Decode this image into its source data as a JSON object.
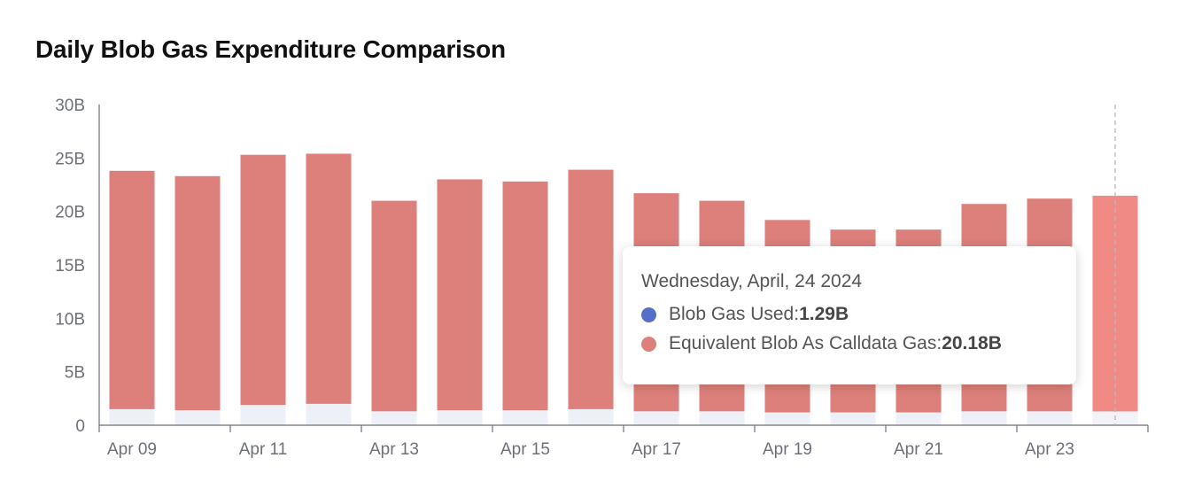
{
  "chart_data": {
    "type": "bar",
    "stacked": true,
    "title": "Daily Blob Gas Expenditure Comparison",
    "categories": [
      "Apr 09",
      "Apr 10",
      "Apr 11",
      "Apr 12",
      "Apr 13",
      "Apr 14",
      "Apr 15",
      "Apr 16",
      "Apr 17",
      "Apr 18",
      "Apr 19",
      "Apr 20",
      "Apr 21",
      "Apr 22",
      "Apr 23",
      "Apr 24"
    ],
    "x_tick_labels": [
      "Apr 09",
      "Apr 11",
      "Apr 13",
      "Apr 15",
      "Apr 17",
      "Apr 19",
      "Apr 21",
      "Apr 23"
    ],
    "y_ticks": [
      "0",
      "5B",
      "10B",
      "15B",
      "20B",
      "25B",
      "30B"
    ],
    "ylim": [
      0,
      30
    ],
    "y_unit": "B",
    "series": [
      {
        "name": "Blob Gas Used",
        "color": "#5470c6",
        "values": [
          1.5,
          1.4,
          1.9,
          2.0,
          1.3,
          1.4,
          1.4,
          1.5,
          1.3,
          1.3,
          1.2,
          1.2,
          1.2,
          1.3,
          1.3,
          1.29
        ]
      },
      {
        "name": "Equivalent Blob As Calldata Gas",
        "color": "#dd7f7a",
        "values": [
          22.3,
          21.9,
          23.4,
          23.4,
          19.7,
          21.6,
          21.4,
          22.4,
          20.4,
          19.7,
          18.0,
          17.1,
          17.1,
          19.4,
          19.9,
          20.18
        ]
      }
    ],
    "highlight_index": 15,
    "legend": "none"
  },
  "tooltip": {
    "date": "Wednesday, April, 24 2024",
    "rows": [
      {
        "label": "Blob Gas Used: ",
        "value": "1.29B",
        "color": "#5470c6"
      },
      {
        "label": "Equivalent Blob As Calldata Gas: ",
        "value": "20.18B",
        "color": "#dd7f7a"
      }
    ]
  }
}
